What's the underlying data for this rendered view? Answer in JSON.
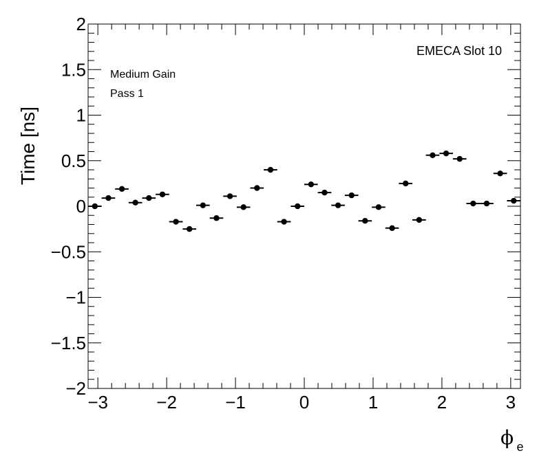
{
  "chart_data": {
    "type": "scatter",
    "annotations": {
      "top_right": "EMECA Slot 10",
      "line1": "Medium Gain",
      "line2": "Pass 1"
    },
    "ylabel": "Time [ns]",
    "xlabel": {
      "symbol": "ϕ",
      "subscript": "e"
    },
    "xlim": [
      -3.14159,
      3.14159
    ],
    "ylim": [
      -2,
      2
    ],
    "x_ticks": [
      -3,
      -2,
      -1,
      0,
      1,
      2,
      3
    ],
    "x_tick_labels": [
      "−3",
      "−2",
      "−1",
      "0",
      "1",
      "2",
      "3"
    ],
    "y_ticks": [
      -2,
      -1.5,
      -1,
      -0.5,
      0,
      0.5,
      1,
      1.5,
      2
    ],
    "y_tick_labels": [
      "−2",
      "−1.5",
      "−1",
      "−0.5",
      "0",
      "0.5",
      "1",
      "1.5",
      "2"
    ],
    "bin_width": 0.19635,
    "series": [
      {
        "x": [
          -3.0434,
          -2.8471,
          -2.6507,
          -2.4544,
          -2.258,
          -2.0617,
          -1.8653,
          -1.669,
          -1.4726,
          -1.2763,
          -1.0799,
          -0.8836,
          -0.6872,
          -0.4909,
          -0.2945,
          -0.0982,
          0.0982,
          0.2945,
          0.4909,
          0.6872,
          0.8836,
          1.0799,
          1.2763,
          1.4726,
          1.669,
          1.8653,
          2.0617,
          2.258,
          2.4544,
          2.6507,
          2.8471,
          3.0434
        ],
        "y": [
          0.0,
          0.09,
          0.19,
          0.04,
          0.09,
          0.13,
          -0.17,
          -0.25,
          0.01,
          -0.13,
          0.11,
          -0.01,
          0.2,
          0.4,
          -0.17,
          0.0,
          0.24,
          0.15,
          0.01,
          0.12,
          -0.16,
          -0.01,
          -0.24,
          0.25,
          -0.15,
          0.56,
          0.58,
          0.52,
          0.03,
          0.03,
          0.36,
          0.06
        ]
      }
    ]
  }
}
